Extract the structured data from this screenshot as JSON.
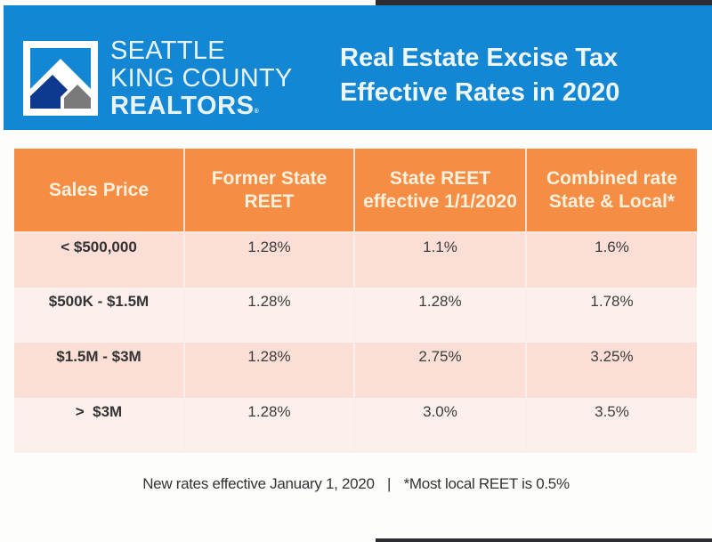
{
  "brand": {
    "line1": "SEATTLE",
    "line2": "KING COUNTY",
    "line3": "REALTORS",
    "trademark": "®",
    "colors": {
      "banner": "#1387d4",
      "house_dark": "#0d3a8f",
      "house_gray": "#7a7a7a",
      "header_orange": "#f58d45"
    }
  },
  "title": {
    "line1": "Real Estate Excise Tax",
    "line2": "Effective Rates in 2020"
  },
  "table": {
    "headers": [
      "Sales Price",
      "Former State REET",
      "State REET effective 1/1/2020",
      "Combined rate State & Local*"
    ],
    "rows": [
      {
        "price": "< $500,000",
        "former": "1.28%",
        "state_2020": "1.1%",
        "combined": "1.6%"
      },
      {
        "price": "$500K - $1.5M",
        "former": "1.28%",
        "state_2020": "1.28%",
        "combined": "1.78%"
      },
      {
        "price": "$1.5M - $3M",
        "former": "1.28%",
        "state_2020": "2.75%",
        "combined": "3.25%"
      },
      {
        "price": ">  $3M",
        "former": "1.28%",
        "state_2020": "3.0%",
        "combined": "3.5%"
      }
    ]
  },
  "footer": {
    "note_left": "New rates effective January 1, 2020",
    "separator": "|",
    "note_right": "*Most local REET is 0.5%"
  }
}
